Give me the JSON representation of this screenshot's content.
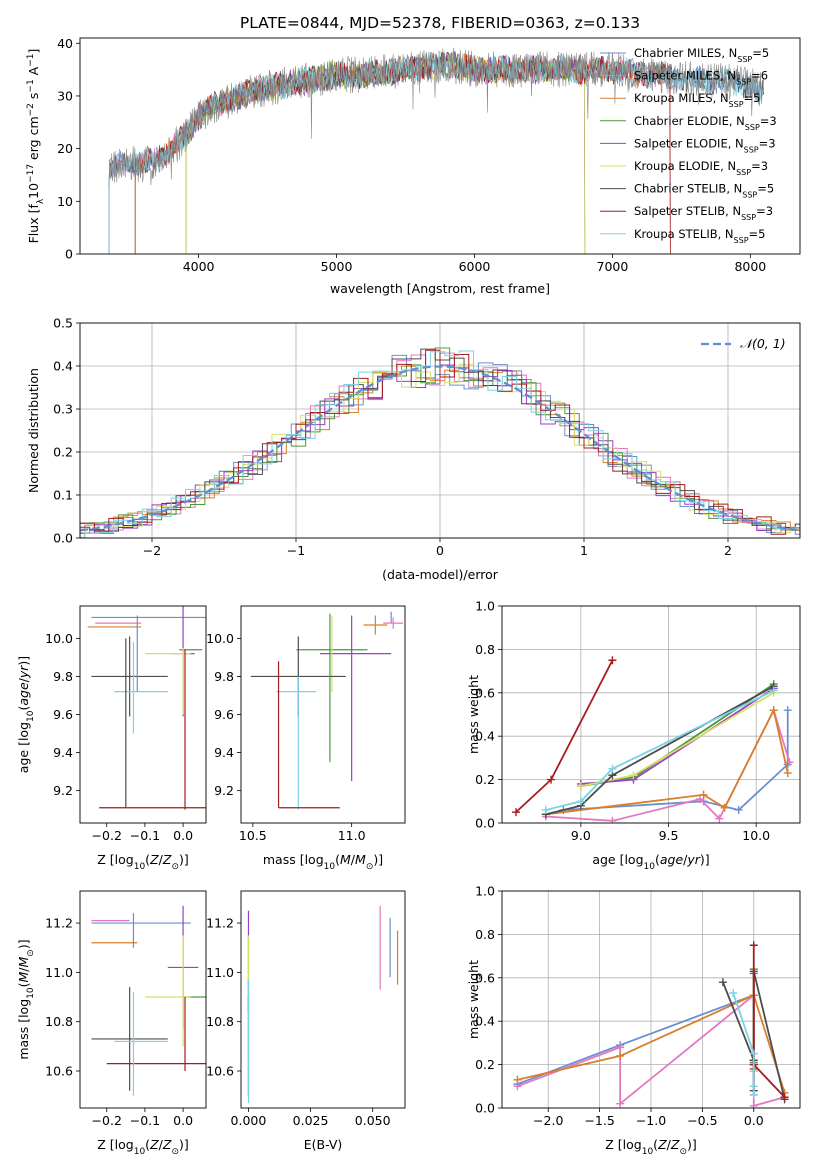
{
  "figure_title": "PLATE=0844, MJD=52378, FIBERID=0363, z=0.133",
  "colors": {
    "chabrier_miles": "#6a8fd1",
    "salpeter_miles": "#e377c2",
    "kroupa_miles": "#d97f2c",
    "chabrier_elodie": "#4c9a3f",
    "salpeter_elodie": "#9b3fc4",
    "kroupa_elodie": "#d7de6a",
    "chabrier_stelib": "#4d4d4d",
    "salpeter_stelib": "#a51c1c",
    "kroupa_stelib": "#79d3e3",
    "gauss": "#5b8fd6"
  },
  "chart_data": [
    {
      "id": "spectrum",
      "type": "line",
      "title": "",
      "xlabel": "wavelength [Angstrom, rest frame]",
      "ylabel": "Flux [f_λ 10^-17 erg cm^-2 s^-1 A^-1]",
      "xlim": [
        3140,
        8360
      ],
      "ylim": [
        0,
        41
      ],
      "xticks": [
        4000,
        5000,
        6000,
        7000,
        8000
      ],
      "yticks": [
        0,
        10,
        20,
        30,
        40
      ],
      "continuum": {
        "x": [
          3350,
          3450,
          3600,
          3700,
          3800,
          3900,
          4000,
          4100,
          4200,
          4300,
          4400,
          4600,
          4800,
          5000,
          5200,
          5500,
          5800,
          6000,
          6300,
          6500,
          6800,
          7000,
          7300,
          7600,
          7800,
          8000,
          8100
        ],
        "y": [
          16,
          17,
          17,
          18,
          20,
          22,
          26,
          28,
          29,
          30,
          31,
          32,
          33,
          34,
          34,
          35,
          36,
          35,
          35,
          35,
          35,
          35,
          34,
          33,
          33,
          32,
          31
        ]
      },
      "series": [
        {
          "name": "Chabrier MILES, N_SSP=5",
          "color_key": "chabrier_miles"
        },
        {
          "name": "Salpeter MILES, N_SSP=6",
          "color_key": "salpeter_miles"
        },
        {
          "name": "Kroupa MILES, N_SSP=5",
          "color_key": "kroupa_miles"
        },
        {
          "name": "Chabrier ELODIE, N_SSP=3",
          "color_key": "chabrier_elodie"
        },
        {
          "name": "Salpeter ELODIE, N_SSP=3",
          "color_key": "salpeter_elodie"
        },
        {
          "name": "Kroupa ELODIE, N_SSP=3",
          "color_key": "kroupa_elodie"
        },
        {
          "name": "Chabrier STELIB, N_SSP=5",
          "color_key": "chabrier_stelib"
        },
        {
          "name": "Salpeter STELIB, N_SSP=3",
          "color_key": "salpeter_stelib"
        },
        {
          "name": "Kroupa STELIB, N_SSP=5",
          "color_key": "kroupa_stelib"
        }
      ],
      "legend_labels": [
        {
          "base": "Chabrier MILES, N",
          "sub": "SSP",
          "tail": "=5"
        },
        {
          "base": "Salpeter MILES, N",
          "sub": "SSP",
          "tail": "=6"
        },
        {
          "base": "Kroupa MILES, N",
          "sub": "SSP",
          "tail": "=5"
        },
        {
          "base": "Chabrier ELODIE, N",
          "sub": "SSP",
          "tail": "=3"
        },
        {
          "base": "Salpeter ELODIE, N",
          "sub": "SSP",
          "tail": "=3"
        },
        {
          "base": "Kroupa ELODIE, N",
          "sub": "SSP",
          "tail": "=3"
        },
        {
          "base": "Chabrier STELIB, N",
          "sub": "SSP",
          "tail": "=5"
        },
        {
          "base": "Salpeter STELIB, N",
          "sub": "SSP",
          "tail": "=3"
        },
        {
          "base": "Kroupa STELIB, N",
          "sub": "SSP",
          "tail": "=5"
        }
      ],
      "legend_position": "upper right",
      "grid": false
    },
    {
      "id": "residuals",
      "type": "histogram",
      "xlabel": "(data-model)/error",
      "ylabel": "Normed distribution",
      "xlim": [
        -2.5,
        2.5
      ],
      "ylim": [
        0,
        0.5
      ],
      "xticks": [
        -2,
        -1,
        0,
        1,
        2
      ],
      "yticks": [
        0.0,
        0.1,
        0.2,
        0.3,
        0.4,
        0.5
      ],
      "bin_width": 0.1,
      "reference_curve": {
        "name": "N(0,1)",
        "label": "𝒩(0, 1)",
        "mean": 0,
        "sigma": 1
      },
      "legend_position": "upper right",
      "grid": true
    },
    {
      "id": "z_vs_age",
      "type": "errorbar",
      "xlabel": "Z [log10(Z/Z⊙)]",
      "ylabel": "age [log10(age/yr)]",
      "xlim": [
        -0.27,
        0.06
      ],
      "ylim": [
        9.03,
        10.17
      ],
      "xticks": [
        -0.2,
        -0.1,
        0.0
      ],
      "yticks": [
        9.2,
        9.4,
        9.6,
        9.8,
        10.0
      ],
      "points": [
        {
          "x": -0.08,
          "y": 10.11,
          "xerr": 0.16,
          "yerr": 0.0,
          "color_key": "chabrier_miles"
        },
        {
          "x": -0.17,
          "y": 10.08,
          "xerr": 0.06,
          "yerr": 0.0,
          "color_key": "salpeter_miles"
        },
        {
          "x": -0.18,
          "y": 10.06,
          "xerr": 0.07,
          "yerr": 0.0,
          "color_key": "kroupa_miles"
        },
        {
          "x": 0.02,
          "y": 9.94,
          "xerr": 0.03,
          "yerr": 0.0,
          "color_key": "chabrier_elodie"
        },
        {
          "x": 0.0,
          "y": 9.92,
          "xerr": 0.03,
          "yerr": 0.33,
          "color_key": "salpeter_elodie"
        },
        {
          "x": -0.04,
          "y": 9.92,
          "xerr": 0.06,
          "yerr": 0.0,
          "color_key": "kroupa_elodie"
        },
        {
          "x": -0.14,
          "y": 9.8,
          "xerr": 0.1,
          "yerr": 0.21,
          "color_key": "chabrier_stelib"
        },
        {
          "x": -0.08,
          "y": 9.11,
          "xerr": 0.14,
          "yerr": 0.0,
          "color_key": "salpeter_stelib"
        },
        {
          "x": -0.11,
          "y": 9.72,
          "xerr": 0.07,
          "yerr": 0.0,
          "color_key": "kroupa_stelib"
        }
      ],
      "vlines": [
        {
          "x": -0.15,
          "y0": 9.11,
          "y1": 10.0,
          "color_key": "chabrier_stelib"
        },
        {
          "x": -0.13,
          "y0": 9.5,
          "y1": 9.98,
          "color_key": "kroupa_stelib"
        },
        {
          "x": -0.12,
          "y0": 9.72,
          "y1": 10.12,
          "color_key": "chabrier_miles"
        },
        {
          "x": 0.005,
          "y0": 9.1,
          "y1": 9.94,
          "color_key": "salpeter_stelib"
        },
        {
          "x": 0.0,
          "y0": 9.6,
          "y1": 9.95,
          "color_key": "kroupa_elodie"
        }
      ]
    },
    {
      "id": "mass_vs_age",
      "type": "errorbar",
      "xlabel": "mass [log10(M/M⊙)]",
      "ylabel": "",
      "xlim": [
        10.44,
        11.27
      ],
      "ylim": [
        9.03,
        10.17
      ],
      "xticks": [
        10.5,
        11.0
      ],
      "yticks": [
        9.2,
        9.4,
        9.6,
        9.8,
        10.0
      ],
      "points": [
        {
          "x": 11.2,
          "y": 10.11,
          "xerr": 0.0,
          "yerr": 0.03,
          "color_key": "chabrier_miles"
        },
        {
          "x": 11.21,
          "y": 10.08,
          "xerr": 0.05,
          "yerr": 0.03,
          "color_key": "salpeter_miles"
        },
        {
          "x": 11.12,
          "y": 10.07,
          "xerr": 0.06,
          "yerr": 0.05,
          "color_key": "kroupa_miles"
        },
        {
          "x": 10.9,
          "y": 9.94,
          "xerr": 0.18,
          "yerr": 0.0,
          "color_key": "chabrier_elodie"
        },
        {
          "x": 11.02,
          "y": 9.92,
          "xerr": 0.18,
          "yerr": 0.0,
          "color_key": "salpeter_elodie"
        },
        {
          "x": 10.9,
          "y": 9.92,
          "xerr": 0.0,
          "yerr": 0.2,
          "color_key": "kroupa_elodie"
        },
        {
          "x": 10.73,
          "y": 9.8,
          "xerr": 0.24,
          "yerr": 0.21,
          "color_key": "chabrier_stelib"
        },
        {
          "x": 10.63,
          "y": 9.11,
          "xerr": 0.0,
          "yerr": 0.0,
          "color_key": "salpeter_stelib"
        },
        {
          "x": 10.72,
          "y": 9.72,
          "xerr": 0.1,
          "yerr": 0.0,
          "color_key": "kroupa_stelib"
        }
      ],
      "vlines": [
        {
          "x": 10.63,
          "y0": 9.11,
          "y1": 9.88,
          "color_key": "salpeter_stelib"
        },
        {
          "x": 10.73,
          "y0": 9.1,
          "y1": 9.8,
          "color_key": "kroupa_stelib"
        },
        {
          "x": 10.89,
          "y0": 9.35,
          "y1": 10.13,
          "color_key": "chabrier_elodie"
        },
        {
          "x": 11.0,
          "y0": 9.25,
          "y1": 10.12,
          "color_key": "salpeter_elodie"
        }
      ],
      "hlines": [
        {
          "y": 9.11,
          "x0": 10.63,
          "x1": 10.94,
          "color_key": "salpeter_stelib"
        }
      ]
    },
    {
      "id": "age_vs_massweight",
      "type": "line",
      "xlabel": "age [log10(age/yr)]",
      "ylabel": "mass weight",
      "xlim": [
        8.55,
        10.25
      ],
      "ylim": [
        0.0,
        1.0
      ],
      "xticks": [
        9.0,
        9.5,
        10.0
      ],
      "yticks": [
        0.0,
        0.2,
        0.4,
        0.6,
        0.8,
        1.0
      ],
      "grid": true,
      "series": [
        {
          "color_key": "chabrier_miles",
          "x": [
            8.8,
            8.9,
            9.7,
            9.9,
            10.18,
            10.18
          ],
          "y": [
            0.04,
            0.06,
            0.1,
            0.06,
            0.27,
            0.52
          ]
        },
        {
          "color_key": "salpeter_miles",
          "x": [
            8.8,
            9.18,
            9.68,
            9.79,
            10.1,
            10.19
          ],
          "y": [
            0.03,
            0.01,
            0.11,
            0.02,
            0.52,
            0.28
          ]
        },
        {
          "color_key": "kroupa_miles",
          "x": [
            8.8,
            9.7,
            9.82,
            10.1,
            10.18
          ],
          "y": [
            0.04,
            0.13,
            0.07,
            0.52,
            0.23
          ]
        },
        {
          "color_key": "chabrier_elodie",
          "x": [
            9.0,
            9.3,
            10.1
          ],
          "y": [
            0.17,
            0.21,
            0.64
          ]
        },
        {
          "color_key": "salpeter_elodie",
          "x": [
            9.0,
            9.3,
            10.1
          ],
          "y": [
            0.18,
            0.2,
            0.62
          ]
        },
        {
          "color_key": "kroupa_elodie",
          "x": [
            9.0,
            9.3,
            10.1
          ],
          "y": [
            0.17,
            0.22,
            0.6
          ]
        },
        {
          "color_key": "chabrier_stelib",
          "x": [
            8.8,
            9.0,
            9.18,
            10.1
          ],
          "y": [
            0.04,
            0.08,
            0.22,
            0.63
          ]
        },
        {
          "color_key": "salpeter_stelib",
          "x": [
            8.63,
            8.83,
            9.18
          ],
          "y": [
            0.05,
            0.2,
            0.75
          ]
        },
        {
          "color_key": "kroupa_stelib",
          "x": [
            8.8,
            9.0,
            9.18,
            10.1
          ],
          "y": [
            0.06,
            0.1,
            0.25,
            0.61
          ]
        }
      ]
    },
    {
      "id": "z_vs_mass",
      "type": "errorbar",
      "xlabel": "Z [log10(Z/Z⊙)]",
      "ylabel": "mass [log10(M/M⊙)]",
      "xlim": [
        -0.27,
        0.06
      ],
      "ylim": [
        10.45,
        11.33
      ],
      "xticks": [
        -0.2,
        -0.1,
        0.0
      ],
      "yticks": [
        10.6,
        10.8,
        11.0,
        11.2
      ],
      "points": [
        {
          "x": -0.11,
          "y": 11.2,
          "xerr": 0.13,
          "yerr": 0.0,
          "color_key": "chabrier_miles"
        },
        {
          "x": -0.19,
          "y": 11.21,
          "xerr": 0.05,
          "yerr": 0.0,
          "color_key": "salpeter_miles"
        },
        {
          "x": -0.18,
          "y": 11.12,
          "xerr": 0.06,
          "yerr": 0.0,
          "color_key": "kroupa_miles"
        },
        {
          "x": 0.03,
          "y": 10.9,
          "xerr": 0.03,
          "yerr": 0.0,
          "color_key": "chabrier_elodie"
        },
        {
          "x": 0.0,
          "y": 11.02,
          "xerr": 0.04,
          "yerr": 0.25,
          "color_key": "salpeter_elodie"
        },
        {
          "x": -0.04,
          "y": 10.9,
          "xerr": 0.06,
          "yerr": 0.0,
          "color_key": "kroupa_elodie"
        },
        {
          "x": -0.14,
          "y": 10.73,
          "xerr": 0.1,
          "yerr": 0.21,
          "color_key": "chabrier_stelib"
        },
        {
          "x": -0.06,
          "y": 10.63,
          "xerr": 0.14,
          "yerr": 0.0,
          "color_key": "salpeter_stelib"
        },
        {
          "x": -0.11,
          "y": 10.72,
          "xerr": 0.07,
          "yerr": 0.0,
          "color_key": "kroupa_stelib"
        }
      ],
      "vlines": [
        {
          "x": -0.13,
          "y0": 11.1,
          "y1": 11.24,
          "color_key": "chabrier_miles"
        },
        {
          "x": -0.13,
          "y0": 10.5,
          "y1": 10.92,
          "color_key": "kroupa_stelib"
        },
        {
          "x": 0.005,
          "y0": 10.6,
          "y1": 10.9,
          "color_key": "salpeter_stelib"
        },
        {
          "x": 0.0,
          "y0": 10.7,
          "y1": 11.15,
          "color_key": "kroupa_elodie"
        }
      ]
    },
    {
      "id": "ebv_vs_mass",
      "type": "errorbar",
      "xlabel": "E(B-V)",
      "ylabel": "",
      "xlim": [
        -0.003,
        0.063
      ],
      "ylim": [
        10.45,
        11.33
      ],
      "xticks": [
        0.0,
        0.025,
        0.05
      ],
      "xticklabels": [
        "0.000",
        "0.025",
        "0.050"
      ],
      "yticks": [
        10.6,
        10.8,
        11.0,
        11.2
      ],
      "points": [
        {
          "x": 0.0,
          "y": 11.1,
          "xerr": 0.0,
          "yerr": 0.15,
          "color_key": "salpeter_elodie"
        },
        {
          "x": 0.0,
          "y": 10.9,
          "xerr": 0.0,
          "yerr": 0.25,
          "color_key": "kroupa_elodie"
        },
        {
          "x": 0.0,
          "y": 10.7,
          "xerr": 0.0,
          "yerr": 0.2,
          "color_key": "chabrier_stelib"
        },
        {
          "x": 0.0,
          "y": 10.9,
          "xerr": 0.0,
          "yerr": 0.06,
          "color_key": "salpeter_stelib"
        },
        {
          "x": 0.0,
          "y": 10.72,
          "xerr": 0.0,
          "yerr": 0.25,
          "color_key": "kroupa_stelib"
        },
        {
          "x": 0.053,
          "y": 11.1,
          "xerr": 0.0,
          "yerr": 0.17,
          "color_key": "salpeter_miles"
        },
        {
          "x": 0.057,
          "y": 11.1,
          "xerr": 0.0,
          "yerr": 0.12,
          "color_key": "chabrier_miles"
        },
        {
          "x": 0.06,
          "y": 11.06,
          "xerr": 0.0,
          "yerr": 0.11,
          "color_key": "kroupa_miles"
        }
      ]
    },
    {
      "id": "z_vs_massweight",
      "type": "line",
      "xlabel": "Z [log10(Z/Z⊙)]",
      "ylabel": "mass weight",
      "xlim": [
        -2.45,
        0.45
      ],
      "ylim": [
        0.0,
        1.0
      ],
      "xticks": [
        -2.0,
        -1.5,
        -1.0,
        -0.5,
        0.0
      ],
      "yticks": [
        0.0,
        0.2,
        0.4,
        0.6,
        0.8,
        1.0
      ],
      "grid": true,
      "series": [
        {
          "color_key": "chabrier_miles",
          "x": [
            -2.3,
            -1.3,
            -0.0,
            -0.0,
            -0.0
          ],
          "y": [
            0.11,
            0.29,
            0.52,
            0.2,
            0.06
          ]
        },
        {
          "color_key": "salpeter_miles",
          "x": [
            -2.3,
            -1.3,
            -1.3,
            -0.0,
            0.0,
            0.3
          ],
          "y": [
            0.1,
            0.28,
            0.02,
            0.52,
            0.01,
            0.05
          ]
        },
        {
          "color_key": "kroupa_miles",
          "x": [
            -2.3,
            -1.3,
            -0.0,
            0.3
          ],
          "y": [
            0.13,
            0.24,
            0.52,
            0.07
          ]
        },
        {
          "color_key": "chabrier_elodie",
          "x": [
            0.0,
            0.0,
            0.0
          ],
          "y": [
            0.64,
            0.21,
            0.17
          ]
        },
        {
          "color_key": "salpeter_elodie",
          "x": [
            0.0,
            0.0,
            0.0
          ],
          "y": [
            0.62,
            0.2,
            0.18
          ]
        },
        {
          "color_key": "kroupa_elodie",
          "x": [
            0.0,
            0.0,
            0.0
          ],
          "y": [
            0.6,
            0.22,
            0.17
          ]
        },
        {
          "color_key": "chabrier_stelib",
          "x": [
            -0.3,
            -0.0,
            0.0,
            0.0,
            0.3
          ],
          "y": [
            0.58,
            0.22,
            0.08,
            0.63,
            0.04
          ]
        },
        {
          "color_key": "salpeter_stelib",
          "x": [
            0.0,
            0.0,
            0.3
          ],
          "y": [
            0.75,
            0.2,
            0.05
          ]
        },
        {
          "color_key": "kroupa_stelib",
          "x": [
            -0.2,
            -0.0,
            0.0,
            0.0
          ],
          "y": [
            0.53,
            0.25,
            0.1,
            0.06
          ]
        }
      ]
    }
  ]
}
